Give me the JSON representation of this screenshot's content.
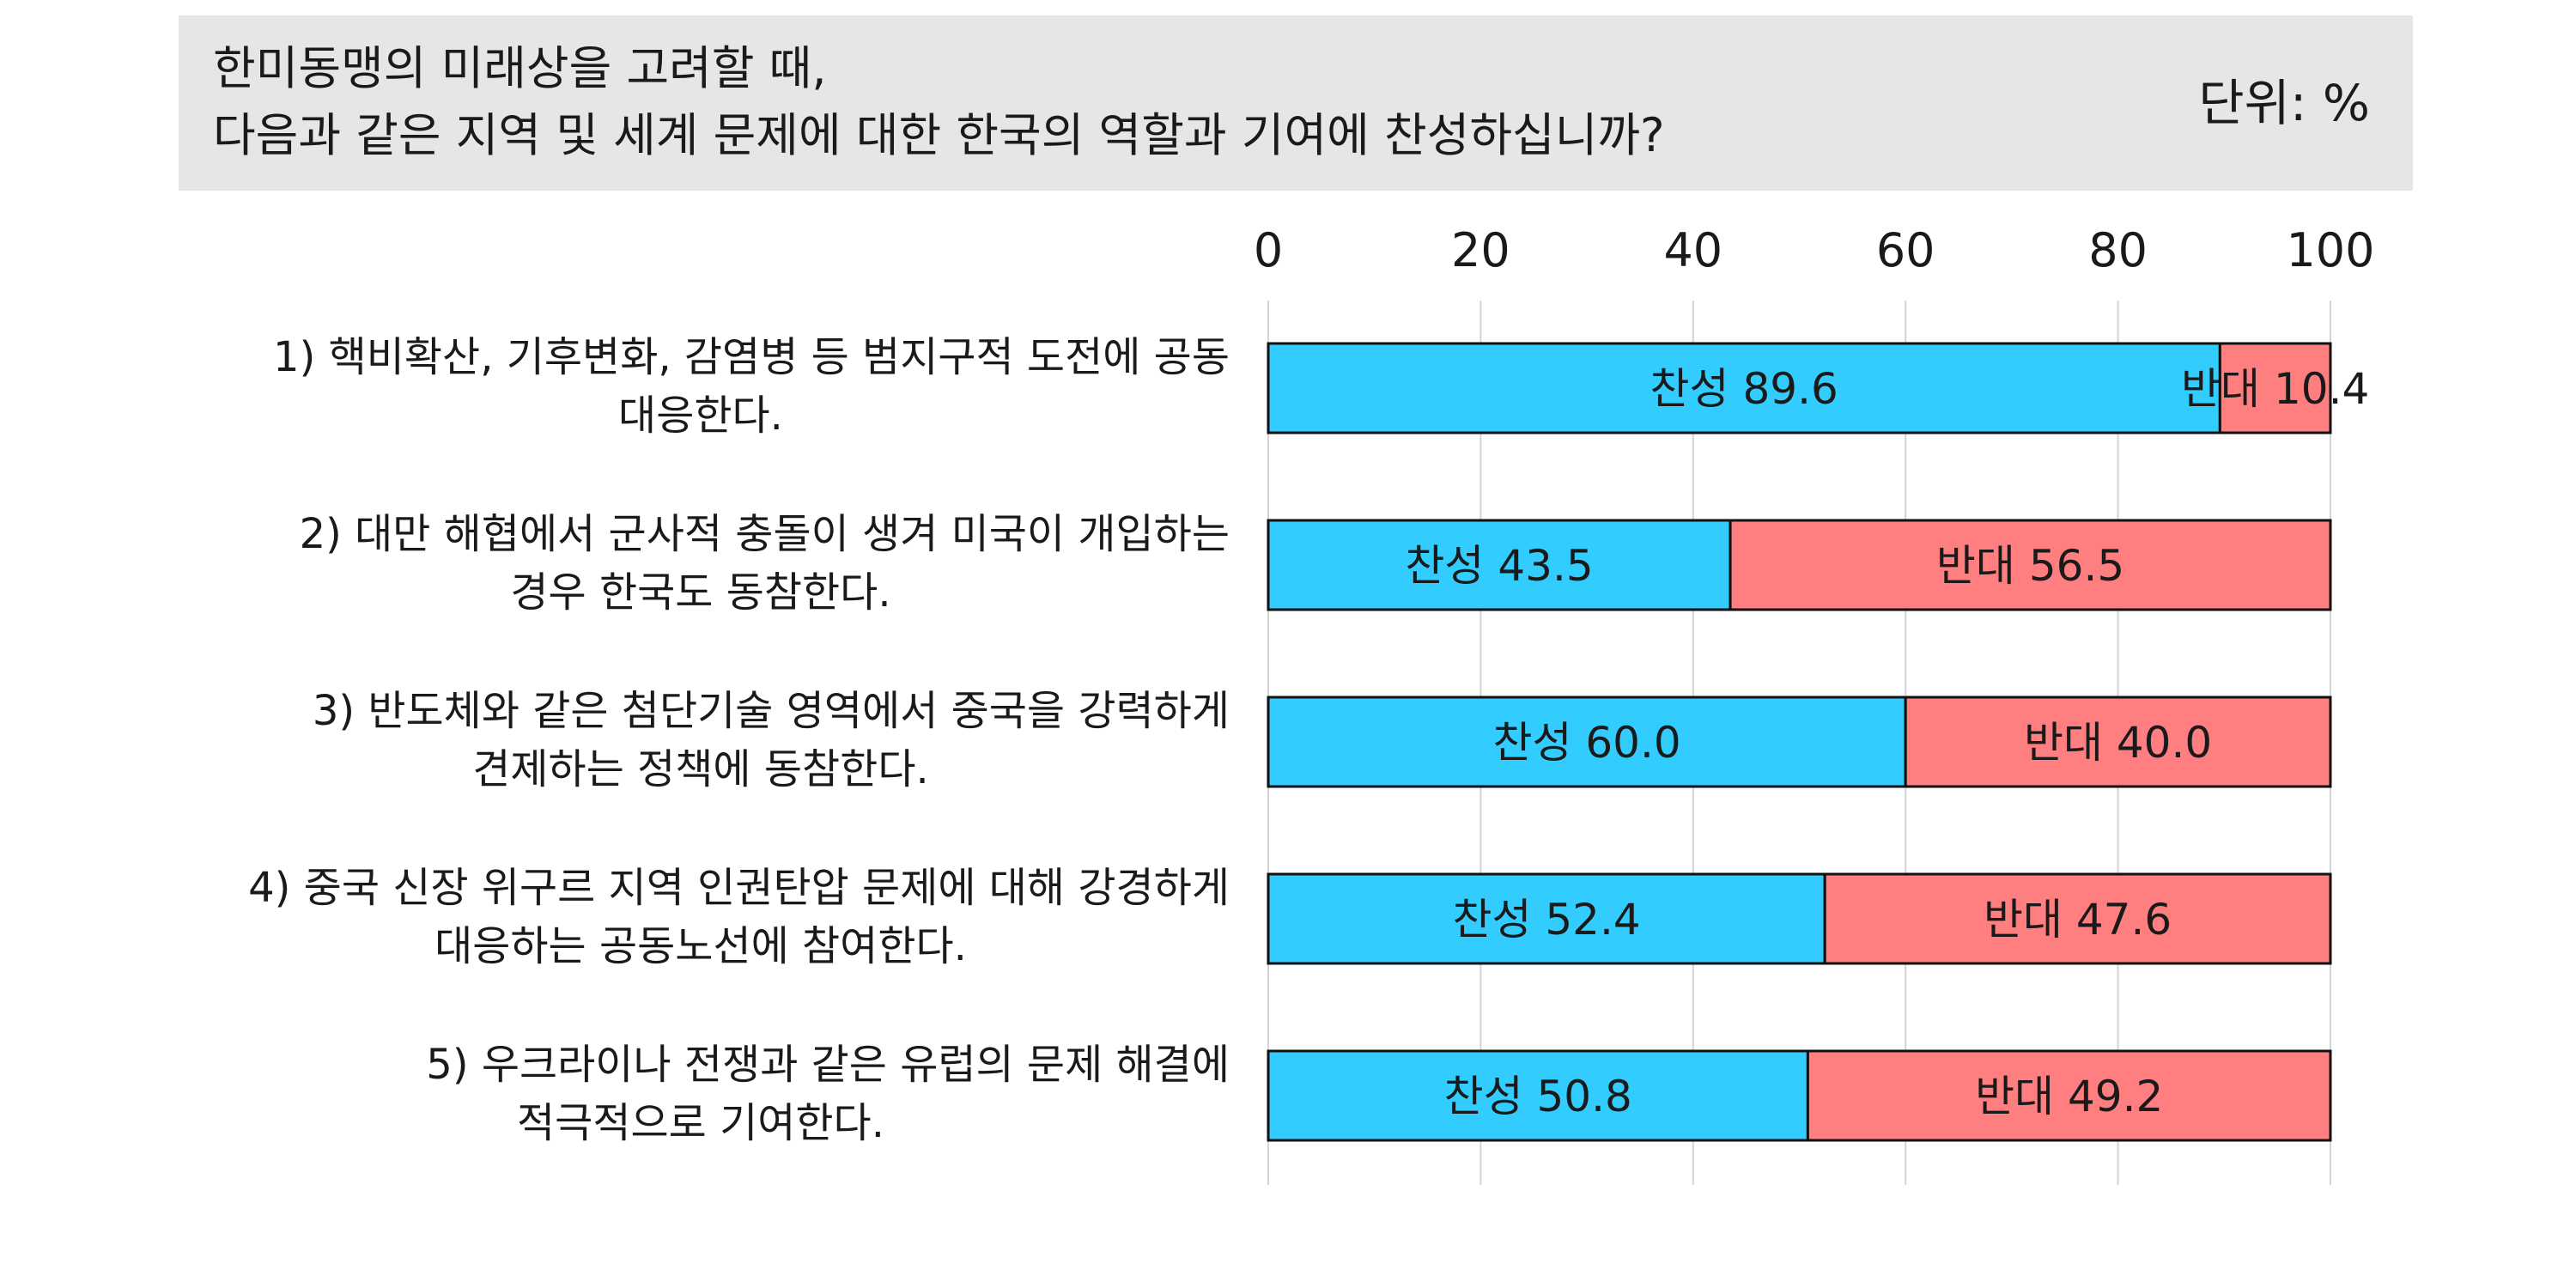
{
  "header": {
    "title_line_1": "한미동맹의 미래상을 고려할 때,",
    "title_line_2": "다음과 같은 지역 및 세계 문제에 대한 한국의 역할과 기여에 찬성하십니까?",
    "unit": "단위: %"
  },
  "colors": {
    "agree": "#33ccff",
    "disagree": "#ff7f80",
    "header_bg": "#e7e6e7",
    "grid": "#d4d4d4",
    "bar_stroke": "#111111"
  },
  "chart_data": {
    "type": "bar",
    "orientation": "horizontal",
    "stacked": true,
    "xlim": [
      0,
      100
    ],
    "x_ticks": [
      "0",
      "20",
      "40",
      "60",
      "80",
      "100"
    ],
    "grid": true,
    "categories": [
      [
        "1) 핵비확산, 기후변화, 감염병 등 범지구적 도전에 공동",
        "대응한다."
      ],
      [
        "2) 대만 해협에서 군사적 충돌이 생겨 미국이 개입하는",
        "경우 한국도 동참한다."
      ],
      [
        "3) 반도체와 같은 첨단기술 영역에서 중국을 강력하게",
        "견제하는 정책에 동참한다."
      ],
      [
        "4) 중국 신장 위구르 지역 인권탄압 문제에 대해 강경하게",
        "대응하는 공동노선에 참여한다."
      ],
      [
        "5) 우크라이나 전쟁과 같은 유럽의 문제 해결에",
        "적극적으로 기여한다."
      ]
    ],
    "series": [
      {
        "name": "찬성",
        "values": [
          89.6,
          43.5,
          60.0,
          52.4,
          50.8
        ],
        "labels": [
          "찬성 89.6",
          "찬성 43.5",
          "찬성 60.0",
          "찬성 52.4",
          "찬성 50.8"
        ]
      },
      {
        "name": "반대",
        "values": [
          10.4,
          56.5,
          40.0,
          47.6,
          49.2
        ],
        "labels": [
          "반대 10.4",
          "반대 56.5",
          "반대 40.0",
          "반대 47.6",
          "반대 49.2"
        ]
      }
    ]
  }
}
